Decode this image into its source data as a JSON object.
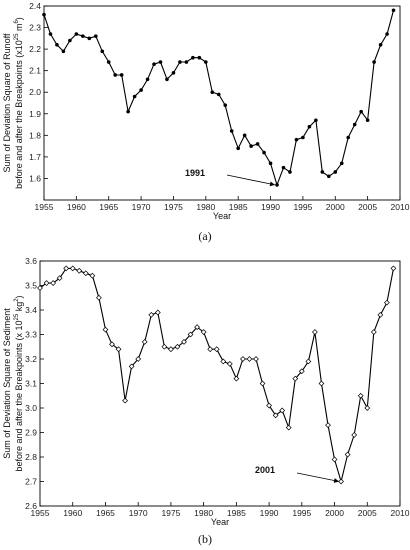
{
  "chart_data": [
    {
      "type": "line",
      "panel_label": "(a)",
      "xlabel": "Year",
      "ylabel_line1": "Sum of Deviation Square of Runoff",
      "ylabel_line2": "before and after the Breakpoints (x10",
      "ylabel_exp": "25",
      "ylabel_unit": "m",
      "ylabel_unit_exp": "6",
      "ylabel_close": ")",
      "xlim": [
        1955,
        2010
      ],
      "ylim": [
        1.5,
        2.4
      ],
      "xticks": [
        1955,
        1960,
        1965,
        1970,
        1975,
        1980,
        1985,
        1990,
        1995,
        2000,
        2005,
        2010
      ],
      "yticks": [
        1.6,
        1.7,
        1.8,
        1.9,
        2.0,
        2.1,
        2.2,
        2.3,
        2.4
      ],
      "ytick_labels": [
        "1.6",
        "1.7",
        "1.8",
        "1.9",
        "2.0",
        "2.1",
        "2.2",
        "2.3",
        "2.4"
      ],
      "marker": "filled-dot",
      "annotation": {
        "text": "1991",
        "x": 1991,
        "y": 1.57
      },
      "x": [
        1955,
        1956,
        1957,
        1958,
        1959,
        1960,
        1961,
        1962,
        1963,
        1964,
        1965,
        1966,
        1967,
        1968,
        1969,
        1970,
        1971,
        1972,
        1973,
        1974,
        1975,
        1976,
        1977,
        1978,
        1979,
        1980,
        1981,
        1982,
        1983,
        1984,
        1985,
        1986,
        1987,
        1988,
        1989,
        1990,
        1991,
        1992,
        1993,
        1994,
        1995,
        1996,
        1997,
        1998,
        1999,
        2000,
        2001,
        2002,
        2003,
        2004,
        2005,
        2006,
        2007,
        2008,
        2009
      ],
      "y": [
        2.36,
        2.27,
        2.22,
        2.19,
        2.24,
        2.27,
        2.26,
        2.25,
        2.26,
        2.19,
        2.14,
        2.08,
        2.08,
        1.91,
        1.98,
        2.01,
        2.06,
        2.13,
        2.14,
        2.06,
        2.09,
        2.14,
        2.14,
        2.16,
        2.16,
        2.14,
        2.0,
        1.99,
        1.94,
        1.82,
        1.74,
        1.8,
        1.75,
        1.76,
        1.72,
        1.67,
        1.57,
        1.65,
        1.63,
        1.78,
        1.79,
        1.84,
        1.87,
        1.63,
        1.61,
        1.63,
        1.67,
        1.79,
        1.85,
        1.91,
        1.87,
        2.14,
        2.22,
        2.27,
        2.38
      ]
    },
    {
      "type": "line",
      "panel_label": "(b)",
      "xlabel": "Year",
      "ylabel_line1": "Sum of Deviation Square of Sediment",
      "ylabel_line2": "before and after the Breakpoints (x 10",
      "ylabel_exp": "25",
      "ylabel_unit": "kg",
      "ylabel_unit_exp": "2",
      "ylabel_close": ")",
      "xlim": [
        1955,
        2010
      ],
      "ylim": [
        2.6,
        3.6
      ],
      "xticks": [
        1955,
        1960,
        1965,
        1970,
        1975,
        1980,
        1985,
        1990,
        1995,
        2000,
        2005,
        2010
      ],
      "yticks": [
        2.6,
        2.7,
        2.8,
        2.9,
        3.0,
        3.1,
        3.2,
        3.3,
        3.4,
        3.5,
        3.6
      ],
      "ytick_labels": [
        "2.6",
        "2.7",
        "2.8",
        "2.9",
        "3.0",
        "3.1",
        "3.2",
        "3.3",
        "3.4",
        "3.5",
        "3.6"
      ],
      "marker": "open-diamond",
      "annotation": {
        "text": "2001",
        "x": 2001,
        "y": 2.7
      },
      "x": [
        1955,
        1956,
        1957,
        1958,
        1959,
        1960,
        1961,
        1962,
        1963,
        1964,
        1965,
        1966,
        1967,
        1968,
        1969,
        1970,
        1971,
        1972,
        1973,
        1974,
        1975,
        1976,
        1977,
        1978,
        1979,
        1980,
        1981,
        1982,
        1983,
        1984,
        1985,
        1986,
        1987,
        1988,
        1989,
        1990,
        1991,
        1992,
        1993,
        1994,
        1995,
        1996,
        1997,
        1998,
        1999,
        2000,
        2001,
        2002,
        2003,
        2004,
        2005,
        2006,
        2007,
        2008,
        2009
      ],
      "y": [
        3.49,
        3.51,
        3.51,
        3.53,
        3.57,
        3.57,
        3.56,
        3.55,
        3.54,
        3.45,
        3.32,
        3.26,
        3.24,
        3.03,
        3.17,
        3.2,
        3.27,
        3.38,
        3.39,
        3.25,
        3.24,
        3.25,
        3.27,
        3.3,
        3.33,
        3.31,
        3.24,
        3.24,
        3.19,
        3.18,
        3.12,
        3.2,
        3.2,
        3.2,
        3.1,
        3.01,
        2.97,
        2.99,
        2.92,
        3.12,
        3.15,
        3.19,
        3.31,
        3.1,
        2.93,
        2.79,
        2.7,
        2.81,
        2.89,
        3.05,
        3.0,
        3.31,
        3.38,
        3.43,
        3.57
      ]
    }
  ]
}
